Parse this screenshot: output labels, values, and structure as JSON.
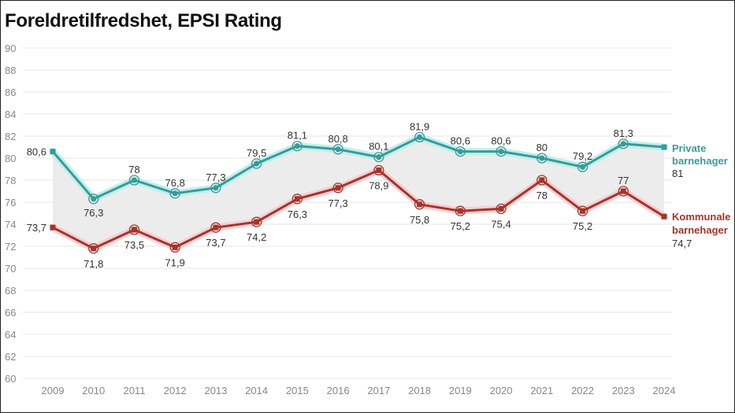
{
  "title": "Foreldretilfredshet, EPSI Rating",
  "colors": {
    "private": "#3a9a98",
    "private_glow": "#bff0ea",
    "kommunale": "#a3352a",
    "kommunale_glow": "#f6cfd3",
    "band": "#ececec",
    "grid": "#e6e6e6",
    "tick": "#888888"
  },
  "chart_data": {
    "type": "line",
    "title": "Foreldretilfredshet, EPSI Rating",
    "xlabel": "",
    "ylabel": "",
    "ylim": [
      60,
      90
    ],
    "yticks": [
      60,
      62,
      64,
      66,
      68,
      70,
      72,
      74,
      76,
      78,
      80,
      82,
      84,
      86,
      88,
      90
    ],
    "grid": true,
    "legend": "right, inline labels at line ends",
    "x": [
      "2009",
      "2010",
      "2011",
      "2012",
      "2013",
      "2014",
      "2015",
      "2016",
      "2017",
      "2018",
      "2019",
      "2020",
      "2021",
      "2022",
      "2023",
      "2024"
    ],
    "series": [
      {
        "name": "Private barnehager",
        "label_lines": [
          "Private",
          "barnehager"
        ],
        "end_value_label": "81",
        "values": [
          80.6,
          76.3,
          78,
          76.8,
          77.3,
          79.5,
          81.1,
          80.8,
          80.1,
          81.9,
          80.6,
          80.6,
          80,
          79.2,
          81.3,
          81
        ],
        "value_labels": [
          "80,6",
          "76,3",
          "78",
          "76,8",
          "77,3",
          "79,5",
          "81,1",
          "80,8",
          "80,1",
          "81,9",
          "80,6",
          "80,6",
          "80",
          "79,2",
          "81,3",
          "81"
        ]
      },
      {
        "name": "Kommunale barnehager",
        "label_lines": [
          "Kommunale",
          "barnehager"
        ],
        "end_value_label": "74,7",
        "values": [
          73.7,
          71.8,
          73.5,
          71.9,
          73.7,
          74.2,
          76.3,
          77.3,
          78.9,
          75.8,
          75.2,
          75.4,
          78,
          75.2,
          77,
          74.7
        ],
        "value_labels": [
          "73,7",
          "71,8",
          "73,5",
          "71,9",
          "73,7",
          "74,2",
          "76,3",
          "77,3",
          "78,9",
          "75,8",
          "75,2",
          "75,4",
          "78",
          "75,2",
          "77",
          "74,7"
        ]
      }
    ]
  }
}
